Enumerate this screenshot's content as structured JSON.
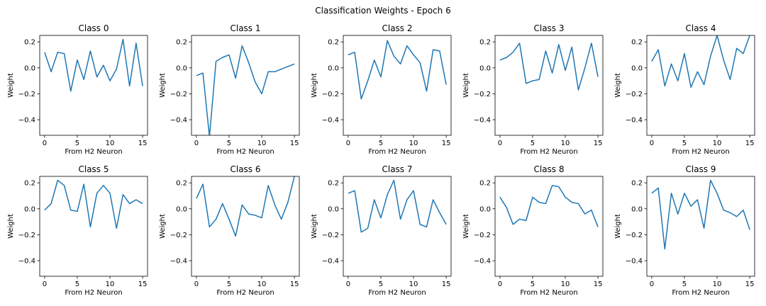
{
  "figure": {
    "suptitle": "Classification Weights - Epoch 6"
  },
  "chart_data": [
    {
      "type": "line",
      "title": "Class 0",
      "xlabel": "From H2 Neuron",
      "ylabel": "Weight",
      "xlim": [
        -0.75,
        15.75
      ],
      "ylim": [
        -0.52,
        0.25
      ],
      "xticks": [
        0,
        5,
        10,
        15
      ],
      "yticks": [
        0.2,
        0.0,
        -0.2,
        -0.4
      ],
      "grid": false,
      "color": "#1f77b4",
      "x": [
        0,
        1,
        2,
        3,
        4,
        5,
        6,
        7,
        8,
        9,
        10,
        11,
        12,
        13,
        14,
        15
      ],
      "y": [
        0.12,
        -0.03,
        0.12,
        0.11,
        -0.18,
        0.06,
        -0.09,
        0.13,
        -0.07,
        0.02,
        -0.1,
        -0.01,
        0.22,
        -0.14,
        0.19,
        -0.14
      ]
    },
    {
      "type": "line",
      "title": "Class 1",
      "xlabel": "From H2 Neuron",
      "ylabel": "Weight",
      "xlim": [
        -0.75,
        15.75
      ],
      "ylim": [
        -0.52,
        0.25
      ],
      "xticks": [
        0,
        5,
        10,
        15
      ],
      "yticks": [
        0.2,
        0.0,
        -0.2,
        -0.4
      ],
      "grid": false,
      "color": "#1f77b4",
      "x": [
        0,
        1,
        2,
        3,
        4,
        5,
        6,
        7,
        8,
        9,
        10,
        11,
        12,
        13,
        14,
        15
      ],
      "y": [
        -0.06,
        -0.04,
        -0.53,
        0.05,
        0.08,
        0.1,
        -0.08,
        0.17,
        0.04,
        -0.11,
        -0.2,
        -0.03,
        -0.03,
        -0.01,
        0.01,
        0.03
      ]
    },
    {
      "type": "line",
      "title": "Class 2",
      "xlabel": "From H2 Neuron",
      "ylabel": "Weight",
      "xlim": [
        -0.75,
        15.75
      ],
      "ylim": [
        -0.52,
        0.25
      ],
      "xticks": [
        0,
        5,
        10,
        15
      ],
      "yticks": [
        0.2,
        0.0,
        -0.2,
        -0.4
      ],
      "grid": false,
      "color": "#1f77b4",
      "x": [
        0,
        1,
        2,
        3,
        4,
        5,
        6,
        7,
        8,
        9,
        10,
        11,
        12,
        13,
        14,
        15
      ],
      "y": [
        0.1,
        0.12,
        -0.24,
        -0.1,
        0.06,
        -0.07,
        0.21,
        0.09,
        0.03,
        0.17,
        0.1,
        0.04,
        -0.18,
        0.14,
        0.13,
        -0.13
      ]
    },
    {
      "type": "line",
      "title": "Class 3",
      "xlabel": "From H2 Neuron",
      "ylabel": "Weight",
      "xlim": [
        -0.75,
        15.75
      ],
      "ylim": [
        -0.52,
        0.25
      ],
      "xticks": [
        0,
        5,
        10,
        15
      ],
      "yticks": [
        0.2,
        0.0,
        -0.2,
        -0.4
      ],
      "grid": false,
      "color": "#1f77b4",
      "x": [
        0,
        1,
        2,
        3,
        4,
        5,
        6,
        7,
        8,
        9,
        10,
        11,
        12,
        13,
        14,
        15
      ],
      "y": [
        0.06,
        0.08,
        0.12,
        0.19,
        -0.12,
        -0.1,
        -0.09,
        0.13,
        -0.04,
        0.18,
        -0.02,
        0.16,
        -0.17,
        0.0,
        0.19,
        -0.07
      ]
    },
    {
      "type": "line",
      "title": "Class 4",
      "xlabel": "From H2 Neuron",
      "ylabel": "Weight",
      "xlim": [
        -0.75,
        15.75
      ],
      "ylim": [
        -0.52,
        0.25
      ],
      "xticks": [
        0,
        5,
        10,
        15
      ],
      "yticks": [
        0.2,
        0.0,
        -0.2,
        -0.4
      ],
      "grid": false,
      "color": "#1f77b4",
      "x": [
        0,
        1,
        2,
        3,
        4,
        5,
        6,
        7,
        8,
        9,
        10,
        11,
        12,
        13,
        14,
        15
      ],
      "y": [
        0.05,
        0.14,
        -0.14,
        0.03,
        -0.1,
        0.11,
        -0.15,
        -0.03,
        -0.13,
        0.09,
        0.25,
        0.06,
        -0.09,
        0.15,
        0.11,
        0.25
      ]
    },
    {
      "type": "line",
      "title": "Class 5",
      "xlabel": "From H2 Neuron",
      "ylabel": "Weight",
      "xlim": [
        -0.75,
        15.75
      ],
      "ylim": [
        -0.52,
        0.25
      ],
      "xticks": [
        0,
        5,
        10,
        15
      ],
      "yticks": [
        0.2,
        0.0,
        -0.2,
        -0.4
      ],
      "grid": false,
      "color": "#1f77b4",
      "x": [
        0,
        1,
        2,
        3,
        4,
        5,
        6,
        7,
        8,
        9,
        10,
        11,
        12,
        13,
        14,
        15
      ],
      "y": [
        -0.01,
        0.04,
        0.22,
        0.18,
        -0.01,
        -0.02,
        0.19,
        -0.14,
        0.12,
        0.18,
        0.12,
        -0.15,
        0.11,
        0.04,
        0.07,
        0.04
      ]
    },
    {
      "type": "line",
      "title": "Class 6",
      "xlabel": "From H2 Neuron",
      "ylabel": "Weight",
      "xlim": [
        -0.75,
        15.75
      ],
      "ylim": [
        -0.52,
        0.25
      ],
      "xticks": [
        0,
        5,
        10,
        15
      ],
      "yticks": [
        0.2,
        0.0,
        -0.2,
        -0.4
      ],
      "grid": false,
      "color": "#1f77b4",
      "x": [
        0,
        1,
        2,
        3,
        4,
        5,
        6,
        7,
        8,
        9,
        10,
        11,
        12,
        13,
        14,
        15
      ],
      "y": [
        0.08,
        0.19,
        -0.14,
        -0.08,
        0.04,
        -0.08,
        -0.21,
        0.03,
        -0.04,
        -0.05,
        -0.07,
        0.18,
        0.03,
        -0.08,
        0.05,
        0.25
      ]
    },
    {
      "type": "line",
      "title": "Class 7",
      "xlabel": "From H2 Neuron",
      "ylabel": "Weight",
      "xlim": [
        -0.75,
        15.75
      ],
      "ylim": [
        -0.52,
        0.25
      ],
      "xticks": [
        0,
        5,
        10,
        15
      ],
      "yticks": [
        0.2,
        0.0,
        -0.2,
        -0.4
      ],
      "grid": false,
      "color": "#1f77b4",
      "x": [
        0,
        1,
        2,
        3,
        4,
        5,
        6,
        7,
        8,
        9,
        10,
        11,
        12,
        13,
        14,
        15
      ],
      "y": [
        0.12,
        0.14,
        -0.18,
        -0.15,
        0.07,
        -0.07,
        0.11,
        0.22,
        -0.08,
        0.07,
        0.14,
        -0.12,
        -0.14,
        0.07,
        -0.03,
        -0.12
      ]
    },
    {
      "type": "line",
      "title": "Class 8",
      "xlabel": "From H2 Neuron",
      "ylabel": "Weight",
      "xlim": [
        -0.75,
        15.75
      ],
      "ylim": [
        -0.52,
        0.25
      ],
      "xticks": [
        0,
        5,
        10,
        15
      ],
      "yticks": [
        0.2,
        0.0,
        -0.2,
        -0.4
      ],
      "grid": false,
      "color": "#1f77b4",
      "x": [
        0,
        1,
        2,
        3,
        4,
        5,
        6,
        7,
        8,
        9,
        10,
        11,
        12,
        13,
        14,
        15
      ],
      "y": [
        0.09,
        0.01,
        -0.12,
        -0.08,
        -0.09,
        0.09,
        0.05,
        0.04,
        0.18,
        0.17,
        0.09,
        0.05,
        0.04,
        -0.04,
        -0.01,
        -0.14
      ]
    },
    {
      "type": "line",
      "title": "Class 9",
      "xlabel": "From H2 Neuron",
      "ylabel": "Weight",
      "xlim": [
        -0.75,
        15.75
      ],
      "ylim": [
        -0.52,
        0.25
      ],
      "xticks": [
        0,
        5,
        10,
        15
      ],
      "yticks": [
        0.2,
        0.0,
        -0.2,
        -0.4
      ],
      "grid": false,
      "color": "#1f77b4",
      "x": [
        0,
        1,
        2,
        3,
        4,
        5,
        6,
        7,
        8,
        9,
        10,
        11,
        12,
        13,
        14,
        15
      ],
      "y": [
        0.12,
        0.16,
        -0.31,
        0.12,
        -0.04,
        0.12,
        0.02,
        0.07,
        -0.15,
        0.22,
        0.12,
        -0.01,
        -0.03,
        -0.06,
        -0.01,
        -0.16
      ]
    }
  ]
}
